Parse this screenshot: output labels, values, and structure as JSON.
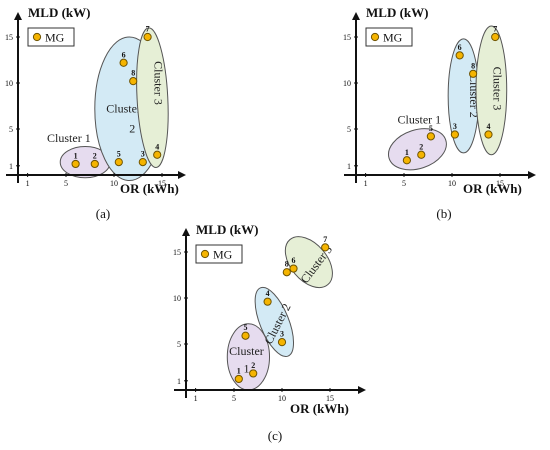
{
  "chart_data": [
    {
      "type": "scatter",
      "panel_label": "(a)",
      "xlabel": "OR (kWh)",
      "ylabel": "MLD (kW)",
      "xticks": [
        "1",
        "5",
        "10",
        "15"
      ],
      "yticks": [
        "1",
        "5",
        "10",
        "15"
      ],
      "xlim": [
        -1,
        19
      ],
      "ylim": [
        -1,
        17
      ],
      "legend": {
        "label": "MG",
        "position": "top-left"
      },
      "points": [
        {
          "label": "1",
          "x": 6,
          "y": 1.2
        },
        {
          "label": "2",
          "x": 8,
          "y": 1.2
        },
        {
          "label": "3",
          "x": 13,
          "y": 1.4
        },
        {
          "label": "4",
          "x": 14.5,
          "y": 2.2
        },
        {
          "label": "5",
          "x": 10.5,
          "y": 1.4
        },
        {
          "label": "6",
          "x": 11,
          "y": 12.2
        },
        {
          "label": "7",
          "x": 13.5,
          "y": 15
        },
        {
          "label": "8",
          "x": 12,
          "y": 10.2
        }
      ],
      "clusters": [
        {
          "name": "Cluster 1",
          "members": [
            "1",
            "2"
          ],
          "color": "#e6dcef"
        },
        {
          "name": "Cluster 2",
          "members": [
            "3",
            "5",
            "6",
            "8"
          ],
          "color": "#d3eaf5"
        },
        {
          "name": "Cluster 3",
          "members": [
            "4",
            "7"
          ],
          "color": "#e6efd6"
        }
      ]
    },
    {
      "type": "scatter",
      "panel_label": "(b)",
      "xlabel": "OR (kWh)",
      "ylabel": "MLD (kW)",
      "xticks": [
        "1",
        "5",
        "10",
        "15"
      ],
      "yticks": [
        "1",
        "5",
        "10",
        "15"
      ],
      "xlim": [
        -1,
        19
      ],
      "ylim": [
        -1,
        17
      ],
      "legend": {
        "label": "MG",
        "position": "top-left"
      },
      "points": [
        {
          "label": "1",
          "x": 5.3,
          "y": 1.6
        },
        {
          "label": "2",
          "x": 6.8,
          "y": 2.2
        },
        {
          "label": "3",
          "x": 10.3,
          "y": 4.4
        },
        {
          "label": "4",
          "x": 13.8,
          "y": 4.4
        },
        {
          "label": "5",
          "x": 7.8,
          "y": 4.2
        },
        {
          "label": "6",
          "x": 10.8,
          "y": 13
        },
        {
          "label": "7",
          "x": 14.5,
          "y": 15
        },
        {
          "label": "8",
          "x": 12.2,
          "y": 11
        }
      ],
      "clusters": [
        {
          "name": "Cluster 1",
          "members": [
            "1",
            "2",
            "5"
          ],
          "color": "#e6dcef"
        },
        {
          "name": "Cluster 2",
          "members": [
            "3",
            "6",
            "8"
          ],
          "color": "#d3eaf5"
        },
        {
          "name": "Cluster 3",
          "members": [
            "4",
            "7"
          ],
          "color": "#e6efd6"
        }
      ]
    },
    {
      "type": "scatter",
      "panel_label": "(c)",
      "xlabel": "OR (kWh)",
      "ylabel": "MLD (kW)",
      "xticks": [
        "1",
        "5",
        "10",
        "15"
      ],
      "yticks": [
        "1",
        "5",
        "10",
        "15"
      ],
      "xlim": [
        -1,
        19
      ],
      "ylim": [
        -1,
        17
      ],
      "legend": {
        "label": "MG",
        "position": "top-left"
      },
      "points": [
        {
          "label": "1",
          "x": 5.5,
          "y": 1.2
        },
        {
          "label": "2",
          "x": 7,
          "y": 1.8
        },
        {
          "label": "3",
          "x": 10,
          "y": 5.2
        },
        {
          "label": "4",
          "x": 8.5,
          "y": 9.6
        },
        {
          "label": "5",
          "x": 6.2,
          "y": 5.9
        },
        {
          "label": "6",
          "x": 11.2,
          "y": 13.2
        },
        {
          "label": "7",
          "x": 14.5,
          "y": 15.5
        },
        {
          "label": "8",
          "x": 10.5,
          "y": 12.8
        }
      ],
      "clusters": [
        {
          "name": "Cluster 1",
          "members": [
            "1",
            "2",
            "5"
          ],
          "color": "#e6dcef"
        },
        {
          "name": "Cluster 2",
          "members": [
            "3",
            "4"
          ],
          "color": "#d3eaf5"
        },
        {
          "name": "Cluster 3",
          "members": [
            "6",
            "7",
            "8"
          ],
          "color": "#e6efd6"
        }
      ]
    }
  ],
  "colors": {
    "point_fill": "#f5b400",
    "point_stroke": "#6e5300",
    "cluster_stroke": "#555555"
  }
}
